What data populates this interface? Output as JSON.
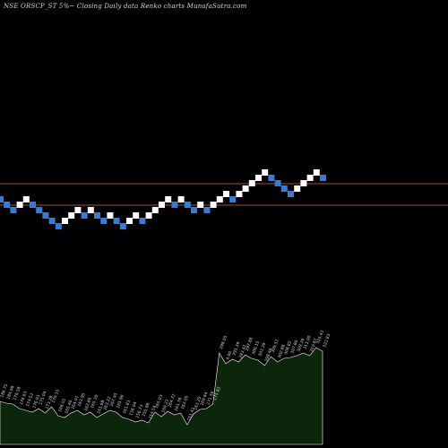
{
  "title": "NSE ORSCP_ST 5%~  Closing Daily data  Renko  charts MunafaSutra.com",
  "colors": {
    "background": "#000000",
    "up_brick": "#ffffff",
    "down_brick": "#2f7de0",
    "level_line": "#a0522d",
    "volume_fill": "#0b260b",
    "volume_stroke": "#ffffff",
    "label_text": "#d8d8d8"
  },
  "chart_data": {
    "type": "renko",
    "brick_size_pct": 5,
    "levels": [
      205,
      229
    ],
    "bricks": [
      {
        "price": 219,
        "dir": "down"
      },
      {
        "price": 225,
        "dir": "down"
      },
      {
        "price": 231,
        "dir": "down"
      },
      {
        "price": 225,
        "dir": "up"
      },
      {
        "price": 219,
        "dir": "up"
      },
      {
        "price": 225,
        "dir": "down"
      },
      {
        "price": 231,
        "dir": "down"
      },
      {
        "price": 237,
        "dir": "down"
      },
      {
        "price": 243,
        "dir": "down"
      },
      {
        "price": 249,
        "dir": "down"
      },
      {
        "price": 243,
        "dir": "up"
      },
      {
        "price": 237,
        "dir": "up"
      },
      {
        "price": 231,
        "dir": "up"
      },
      {
        "price": 237,
        "dir": "down"
      },
      {
        "price": 231,
        "dir": "up"
      },
      {
        "price": 237,
        "dir": "down"
      },
      {
        "price": 243,
        "dir": "down"
      },
      {
        "price": 237,
        "dir": "up"
      },
      {
        "price": 243,
        "dir": "down"
      },
      {
        "price": 249,
        "dir": "down"
      },
      {
        "price": 243,
        "dir": "up"
      },
      {
        "price": 237,
        "dir": "up"
      },
      {
        "price": 243,
        "dir": "down"
      },
      {
        "price": 237,
        "dir": "up"
      },
      {
        "price": 231,
        "dir": "up"
      },
      {
        "price": 225,
        "dir": "up"
      },
      {
        "price": 219,
        "dir": "up"
      },
      {
        "price": 225,
        "dir": "down"
      },
      {
        "price": 219,
        "dir": "up"
      },
      {
        "price": 225,
        "dir": "down"
      },
      {
        "price": 231,
        "dir": "down"
      },
      {
        "price": 225,
        "dir": "up"
      },
      {
        "price": 231,
        "dir": "down"
      },
      {
        "price": 225,
        "dir": "up"
      },
      {
        "price": 219,
        "dir": "up"
      },
      {
        "price": 213,
        "dir": "up"
      },
      {
        "price": 219,
        "dir": "down"
      },
      {
        "price": 213,
        "dir": "up"
      },
      {
        "price": 207,
        "dir": "up"
      },
      {
        "price": 201,
        "dir": "up"
      },
      {
        "price": 195,
        "dir": "up"
      },
      {
        "price": 189,
        "dir": "up"
      },
      {
        "price": 195,
        "dir": "down"
      },
      {
        "price": 201,
        "dir": "down"
      },
      {
        "price": 207,
        "dir": "down"
      },
      {
        "price": 213,
        "dir": "down"
      },
      {
        "price": 207,
        "dir": "up"
      },
      {
        "price": 201,
        "dir": "up"
      },
      {
        "price": 195,
        "dir": "up"
      },
      {
        "price": 189,
        "dir": "up"
      },
      {
        "price": 195,
        "dir": "down"
      }
    ],
    "volume_labels": [
      "186.75",
      "184.08",
      "178.58",
      "176.63",
      "174.51",
      "176.93",
      "175.04",
      "173.28",
      "170.15",
      "166.01",
      "165.40",
      "164.01",
      "163.95",
      "162.86",
      "165.30",
      "161.68",
      "163.22",
      "167.45",
      "165.90",
      "161.83",
      "156.04",
      "156.73",
      "155.88",
      "154.54",
      "165.03",
      "160.27",
      "164.72",
      "161.78",
      "163.05",
      "151.41",
      "163.25",
      "169.64",
      "171.56",
      "175.82",
      "298.05",
      "4.00",
      "291.39",
      "283.41",
      "297.88",
      "300.15",
      "303.39",
      "298.46",
      "309.51",
      "302.88",
      "308.82",
      "307.80",
      "309.26",
      "313.00",
      "310.87",
      "325.43",
      "322.83"
    ],
    "volume_values": [
      48,
      46,
      45,
      40,
      38,
      36,
      40,
      35,
      42,
      32,
      30,
      35,
      38,
      33,
      36,
      30,
      34,
      38,
      36,
      30,
      28,
      25,
      27,
      24,
      36,
      31,
      37,
      33,
      35,
      22,
      34,
      39,
      40,
      45,
      102,
      90,
      95,
      92,
      100,
      96,
      94,
      88,
      98,
      92,
      96,
      97,
      99,
      102,
      99,
      108,
      104
    ]
  }
}
